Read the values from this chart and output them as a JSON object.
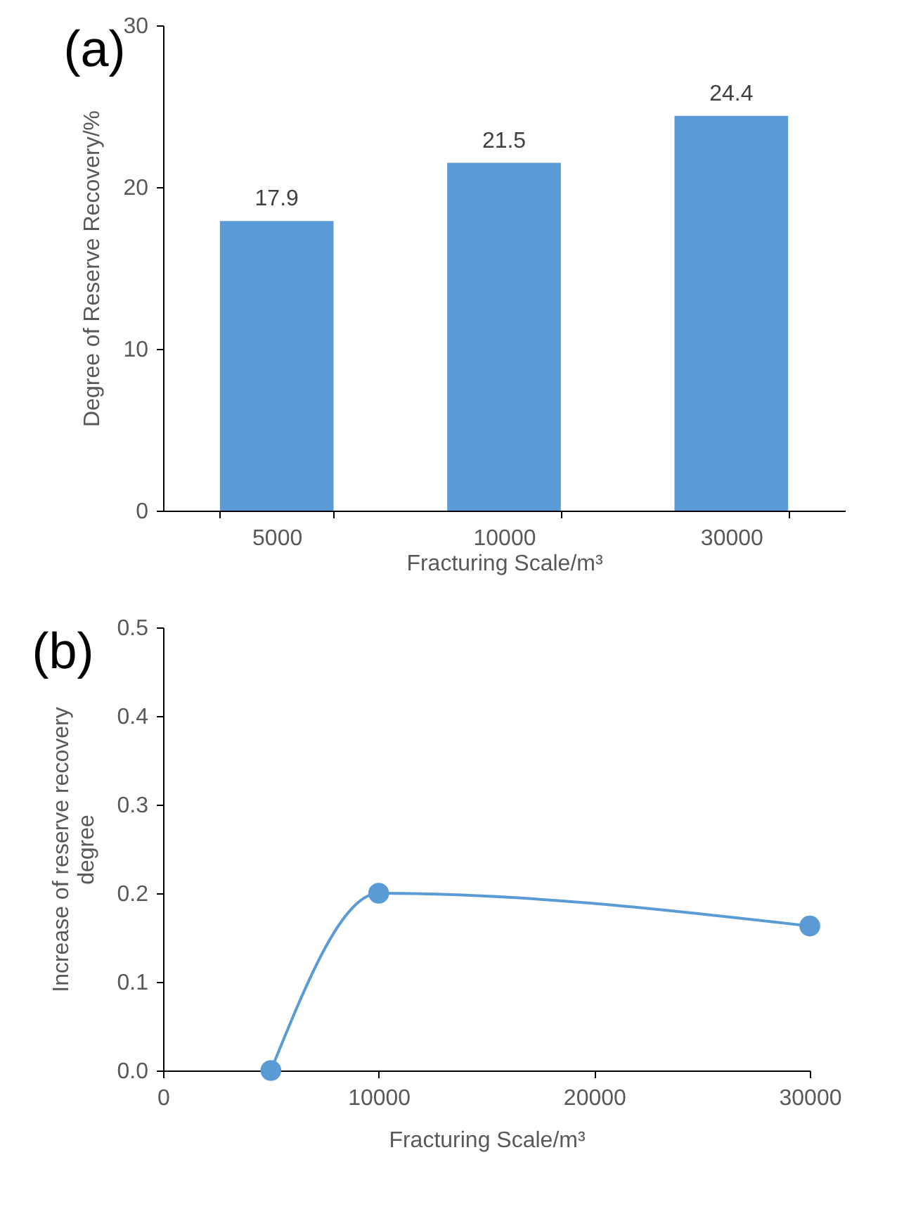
{
  "chart_data": [
    {
      "type": "bar",
      "title": "(a)",
      "xlabel": "Fracturing Scale/m³",
      "ylabel": "Degree of Reserve Recovery/%",
      "categories": [
        "5000",
        "10000",
        "30000"
      ],
      "values": [
        17.9,
        21.5,
        24.4
      ],
      "color": "#5b9bd5",
      "ylim": [
        0,
        30
      ],
      "yticks": [
        0,
        10,
        20,
        30
      ],
      "data_labels": true,
      "grid": false
    },
    {
      "type": "line",
      "title": "(b)",
      "xlabel": "Fracturing Scale/m³",
      "ylabel": "Increase of reserve recovery\ndegree",
      "x": [
        5000,
        10000,
        30000
      ],
      "values": [
        0,
        0.2,
        0.163
      ],
      "color": "#5b9bd5",
      "marker": "circle",
      "xlim": [
        0,
        30000
      ],
      "xticks": [
        0,
        10000,
        20000,
        30000
      ],
      "ylim": [
        0,
        0.5
      ],
      "yticks": [
        {
          "value": 0,
          "label": "0.0"
        },
        0.1,
        0.2,
        0.3,
        0.4,
        0.5
      ],
      "grid": false
    }
  ]
}
